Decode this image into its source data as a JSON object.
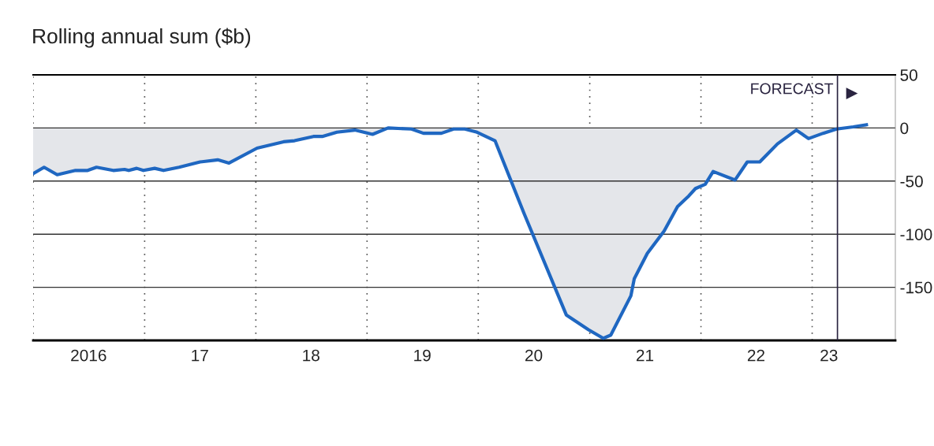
{
  "chart_data": {
    "type": "area",
    "title": "Rolling annual sum ($b)",
    "series": [
      {
        "color": "#1f67c1",
        "x": [
          "2016-01-01",
          "2016-02-06",
          "2016-03-20",
          "2016-05-19",
          "2016-06-28",
          "2016-07-27",
          "2016-09-20",
          "2016-10-27",
          "2016-11-10",
          "2016-12-06",
          "2016-12-28",
          "2017-02-03",
          "2017-03-04",
          "2017-04-24",
          "2017-07-02",
          "2017-08-29",
          "2017-10-05",
          "2018-01-05",
          "2018-04-02",
          "2018-05-08",
          "2018-07-09",
          "2018-08-07",
          "2018-09-24",
          "2018-11-22",
          "2019-01-19",
          "2019-03-11",
          "2019-05-27",
          "2019-07-05",
          "2019-09-02",
          "2019-10-12",
          "2019-11-18",
          "2019-12-28",
          "2020-02-25",
          "2020-05-31",
          "2020-10-16",
          "2020-12-28",
          "2021-02-14",
          "2021-03-11",
          "2021-05-16",
          "2021-05-27",
          "2021-07-09",
          "2021-09-02",
          "2021-10-16",
          "2021-11-22",
          "2021-12-14",
          "2022-01-15",
          "2022-02-10",
          "2022-04-23",
          "2022-06-02",
          "2022-07-13",
          "2022-09-09",
          "2022-11-10",
          "2022-12-20",
          "2023-02-06",
          "2023-03-22",
          "2023-05-16",
          "2023-06-28"
        ],
        "values": [
          -43,
          -37,
          -44,
          -40,
          -40,
          -37,
          -40,
          -39,
          -40,
          -38,
          -40,
          -38,
          -40,
          -37,
          -32,
          -30,
          -33,
          -19,
          -13,
          -12,
          -8,
          -8,
          -4,
          -2,
          -6,
          0,
          -1,
          -5,
          -5,
          -1,
          -1,
          -4,
          -12,
          -81,
          -176,
          -190,
          -198,
          -195,
          -158,
          -142,
          -118,
          -97,
          -74,
          -64,
          -57,
          -53,
          -41,
          -49,
          -32,
          -32,
          -15,
          -2,
          -10,
          -5,
          -1,
          1,
          3
        ]
      }
    ],
    "xlim": [
      "2016-01-01",
      "2023-10-01"
    ],
    "xticks": [
      {
        "value": "2016-01-01",
        "label": null
      },
      {
        "value": "2016-07-01",
        "label": "2016"
      },
      {
        "value": "2017-01-01",
        "label": null
      },
      {
        "value": "2017-07-01",
        "label": "17"
      },
      {
        "value": "2018-01-01",
        "label": null
      },
      {
        "value": "2018-07-01",
        "label": "18"
      },
      {
        "value": "2019-01-01",
        "label": null
      },
      {
        "value": "2019-07-01",
        "label": "19"
      },
      {
        "value": "2020-01-01",
        "label": null
      },
      {
        "value": "2020-07-01",
        "label": "20"
      },
      {
        "value": "2021-01-01",
        "label": null
      },
      {
        "value": "2021-07-01",
        "label": "21"
      },
      {
        "value": "2022-01-01",
        "label": null
      },
      {
        "value": "2022-07-01",
        "label": "22"
      },
      {
        "value": "2023-01-01",
        "label": null
      },
      {
        "value": "2023-02-25",
        "label": "23"
      }
    ],
    "ylim": [
      -200,
      50
    ],
    "yticks": [
      -150,
      -100,
      -50,
      0,
      50
    ],
    "grid": true,
    "ref_lines": [
      {
        "axis": "x",
        "value": "2023-03-25",
        "label": "FORECAST",
        "color": "#2a2440"
      }
    ]
  }
}
